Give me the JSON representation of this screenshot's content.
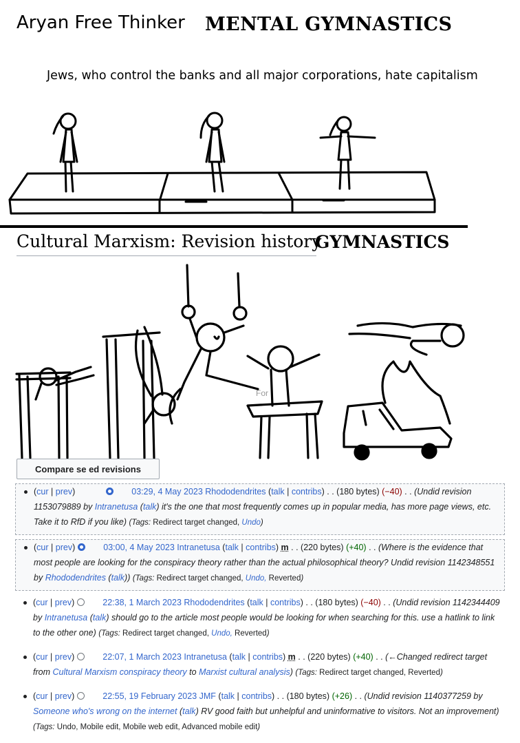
{
  "meme": {
    "brand": "Aryan Free Thinker",
    "title_top": "MENTAL GYMNASTICS",
    "caption": "Jews, who control the banks and all major corporations, hate capitalism",
    "title_bottom": "GYMNASTICS",
    "ring_text": "For"
  },
  "wiki": {
    "heading": "Cultural Marxism: Revision history",
    "compare_button": "Compare se    ed revisions",
    "revisions": [
      {
        "cur": "cur",
        "prev": "prev",
        "date": "03:29, 4 May 2023",
        "user": "Rhododendrites",
        "talk": "talk",
        "contribs": "contribs",
        "minor": "",
        "size": "(180 bytes)",
        "diff": "(−40)",
        "summary_pre": "(Undid revision 1153079889 by ",
        "summary_link1": "Intranetusa",
        "summary_mid1": " (",
        "summary_link2": "talk",
        "summary_mid2": ") it's the one that most frequently comes up in popular media, has more page views, etc. Take it to RfD if you like)",
        "summary_link3": "",
        "summary_post": "",
        "tags_label": "Tags:",
        "tags_text": "Redirect target changed,",
        "tags_link": "Undo",
        "tags_tail": "",
        "selected": true,
        "radio_right": true
      },
      {
        "cur": "cur",
        "prev": "prev",
        "date": "03:00, 4 May 2023",
        "user": "Intranetusa",
        "talk": "talk",
        "contribs": "contribs",
        "minor": "m",
        "size": "(220 bytes)",
        "diff": "(+40)",
        "summary_pre": "(Where is the evidence that most people are looking for the conspiracy theory rather than the actual philosophical theory? Undid revision 1142348551 by ",
        "summary_link1": "Rhododendrites",
        "summary_mid1": " (",
        "summary_link2": "talk",
        "summary_mid2": "))",
        "summary_link3": "",
        "summary_post": "",
        "tags_label": "Tags:",
        "tags_text": "Redirect target changed,",
        "tags_link": "Undo,",
        "tags_tail": "Reverted",
        "selected": true,
        "radio_right": false
      },
      {
        "cur": "cur",
        "prev": "prev",
        "date": "22:38, 1 March 2023",
        "user": "Rhododendrites",
        "talk": "talk",
        "contribs": "contribs",
        "minor": "",
        "size": "(180 bytes)",
        "diff": "(−40)",
        "summary_pre": "(Undid revision 1142344409 by ",
        "summary_link1": "Intranetusa",
        "summary_mid1": " (",
        "summary_link2": "talk",
        "summary_mid2": ") should go to the article most people would be looking for when searching for this. use a hatlink to link to the other one)",
        "summary_link3": "",
        "summary_post": "",
        "tags_label": "Tags:",
        "tags_text": "Redirect target changed,",
        "tags_link": "Undo,",
        "tags_tail": "Reverted",
        "selected": false,
        "radio_right": false
      },
      {
        "cur": "cur",
        "prev": "prev",
        "date": "22:07, 1 March 2023",
        "user": "Intranetusa",
        "talk": "talk",
        "contribs": "contribs",
        "minor": "m",
        "size": "(220 bytes)",
        "diff": "(+40)",
        "summary_pre": "(←Changed redirect target from ",
        "summary_link1": "Cultural Marxism conspiracy theory",
        "summary_mid1": " to ",
        "summary_link2": "Marxist cultural analysis",
        "summary_mid2": ")",
        "summary_link3": "",
        "summary_post": "",
        "tags_label": "Tags:",
        "tags_text": "Redirect target changed, Reverted",
        "tags_link": "",
        "tags_tail": "",
        "selected": false,
        "radio_right": false
      },
      {
        "cur": "cur",
        "prev": "prev",
        "date": "22:55, 19 February 2023",
        "user": "JMF",
        "talk": "talk",
        "contribs": "contribs",
        "minor": "",
        "size": "(180 bytes)",
        "diff": "(+26)",
        "summary_pre": "(Undid revision 1140377259 by ",
        "summary_link1": "Someone who's wrong on the internet",
        "summary_mid1": " (",
        "summary_link2": "talk",
        "summary_mid2": ") RV good faith but unhelpful and uninformative to visitors. Not an improvement)",
        "summary_link3": "",
        "summary_post": "",
        "tags_label": "Tags:",
        "tags_text": "Undo, Mobile edit, Mobile web edit, Advanced mobile edit",
        "tags_link": "",
        "tags_tail": "",
        "selected": false,
        "radio_right": false
      }
    ]
  }
}
